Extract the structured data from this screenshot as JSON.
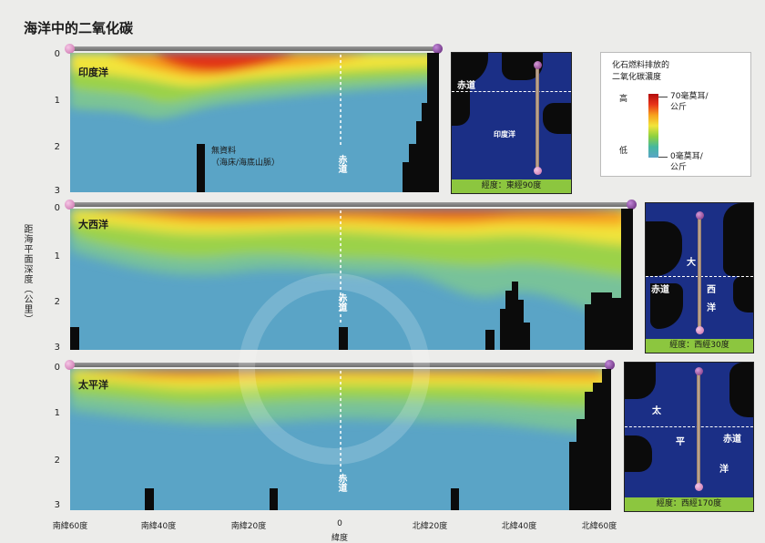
{
  "title": "海洋中的二氧化碳",
  "y_axis_label": "距海平面深度（公里）",
  "x_axis_label": "緯度",
  "x_ticks": [
    "南緯60度",
    "南緯40度",
    "南緯20度",
    "0",
    "北緯20度",
    "北緯40度",
    "北緯60度"
  ],
  "y_ticks": [
    "0",
    "1",
    "2",
    "3"
  ],
  "equator_label": "赤道",
  "panels": [
    {
      "ocean": "印度洋",
      "nodata_line1": "無資料",
      "nodata_line2": "（海床/海底山脈）"
    },
    {
      "ocean": "大西洋"
    },
    {
      "ocean": "太平洋"
    }
  ],
  "maps": [
    {
      "caption": "經度：東經90度",
      "equator": "赤道",
      "ocean_name": "印度洋"
    },
    {
      "caption": "經度：西經30度",
      "equator": "赤道",
      "ocean_chars": [
        "大",
        "西",
        "洋"
      ]
    },
    {
      "caption": "經度：西經170度",
      "equator": "赤道",
      "ocean_chars": [
        "太",
        "平",
        "洋"
      ]
    }
  ],
  "legend": {
    "title_line1": "化石燃料排放的",
    "title_line2": "二氧化碳濃度",
    "high": "高",
    "low": "低",
    "max_line1": "70毫莫耳/",
    "max_line2": "公斤",
    "min_line1": "0毫莫耳/",
    "min_line2": "公斤"
  },
  "colors": {
    "deep": "#5aa4c6",
    "mid": "#79c08a",
    "surface_green": "#8ed13e",
    "yellow": "#f2e43a",
    "orange": "#f7a11c",
    "red": "#e23018",
    "land": "#0b0b0b",
    "map_ocean": "#1b2f86",
    "caption_bg": "#8cc63f"
  }
}
